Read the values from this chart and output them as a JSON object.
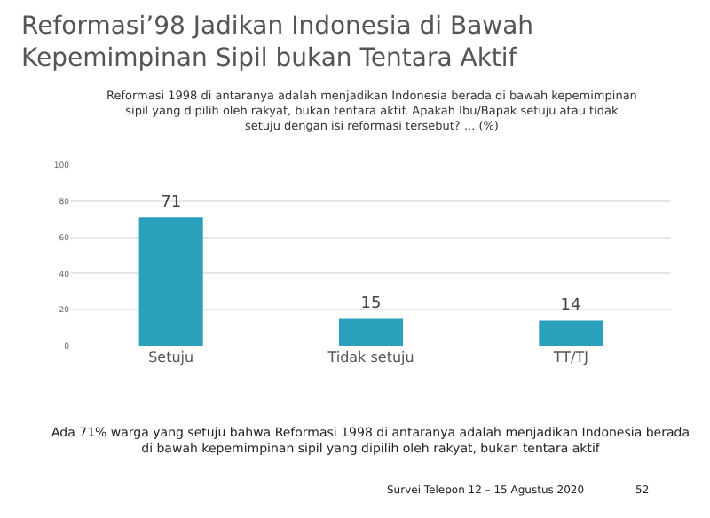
{
  "chart_data": {
    "type": "bar",
    "title": "Reformasi’98 Jadikan Indonesia di Bawah Kepemimpinan Sipil bukan Tentara Aktif",
    "subtitle": "Reformasi 1998 di antaranya adalah menjadikan Indonesia berada di bawah kepemimpinan sipil yang dipilih oleh rakyat, bukan tentara aktif. Apakah Ibu/Bapak setuju atau tidak setuju dengan isi reformasi tersebut? ... (%)",
    "categories": [
      "Setuju",
      "Tidak setuju",
      "TT/TJ"
    ],
    "values": [
      71,
      15,
      14
    ],
    "color": "#2aa0bd",
    "ylim": [
      0,
      100
    ],
    "yticks": [
      0,
      20,
      40,
      60,
      80,
      100
    ],
    "grid": "y",
    "data_labels": true,
    "annotations": [
      "Ada 71% warga yang setuju bahwa Reformasi 1998 di antaranya adalah menjadikan Indonesia berada di bawah kepemimpinan sipil yang dipilih oleh rakyat, bukan tentara aktif",
      "Survei Telepon 12 – 15 Agustus 2020",
      "52"
    ]
  }
}
